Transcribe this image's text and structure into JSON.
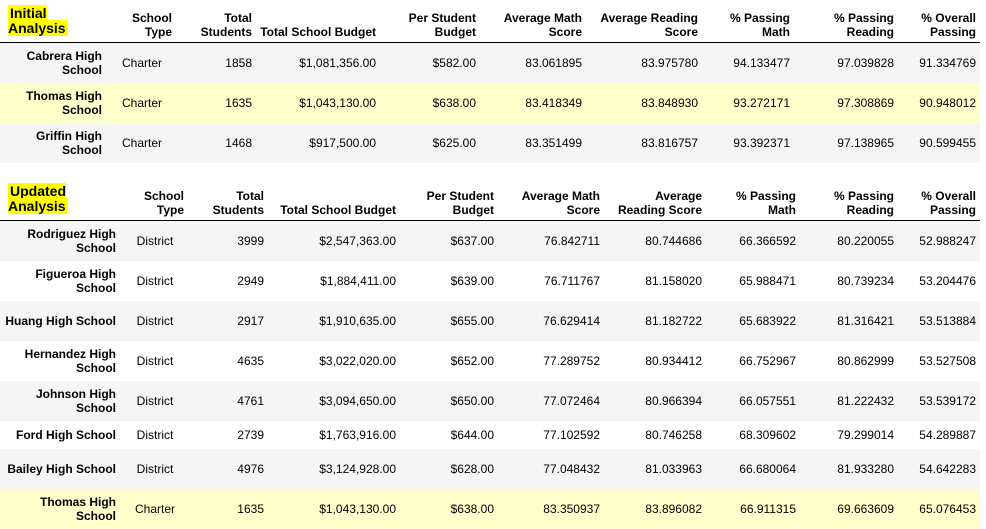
{
  "initial": {
    "title": "Initial Analysis",
    "headers": [
      "School Type",
      "Total Students",
      "Total School Budget",
      "Per Student Budget",
      "Average Math Score",
      "Average Reading Score",
      "% Passing Math",
      "% Passing Reading",
      "% Overall Passing"
    ],
    "rows": [
      {
        "name": "Cabrera High School",
        "type": "Charter",
        "students": "1858",
        "budget": "$1,081,356.00",
        "per_student": "$582.00",
        "math": "83.061895",
        "reading": "83.975780",
        "pass_math": "94.133477",
        "pass_reading": "97.039828",
        "overall": "91.334769"
      },
      {
        "name": "Thomas High School",
        "type": "Charter",
        "students": "1635",
        "budget": "$1,043,130.00",
        "per_student": "$638.00",
        "math": "83.418349",
        "reading": "83.848930",
        "pass_math": "93.272171",
        "pass_reading": "97.308869",
        "overall": "90.948012"
      },
      {
        "name": "Griffin High School",
        "type": "Charter",
        "students": "1468",
        "budget": "$917,500.00",
        "per_student": "$625.00",
        "math": "83.351499",
        "reading": "83.816757",
        "pass_math": "93.392371",
        "pass_reading": "97.138965",
        "overall": "90.599455"
      }
    ]
  },
  "updated": {
    "title": "Updated Analysis",
    "headers": [
      "School Type",
      "Total Students",
      "Total School Budget",
      "Per Student Budget",
      "Average Math Score",
      "Average Reading Score",
      "% Passing Math",
      "% Passing Reading",
      "% Overall Passing"
    ],
    "rows": [
      {
        "name": "Rodriguez High School",
        "type": "District",
        "students": "3999",
        "budget": "$2,547,363.00",
        "per_student": "$637.00",
        "math": "76.842711",
        "reading": "80.744686",
        "pass_math": "66.366592",
        "pass_reading": "80.220055",
        "overall": "52.988247"
      },
      {
        "name": "Figueroa High School",
        "type": "District",
        "students": "2949",
        "budget": "$1,884,411.00",
        "per_student": "$639.00",
        "math": "76.711767",
        "reading": "81.158020",
        "pass_math": "65.988471",
        "pass_reading": "80.739234",
        "overall": "53.204476"
      },
      {
        "name": "Huang High School",
        "type": "District",
        "students": "2917",
        "budget": "$1,910,635.00",
        "per_student": "$655.00",
        "math": "76.629414",
        "reading": "81.182722",
        "pass_math": "65.683922",
        "pass_reading": "81.316421",
        "overall": "53.513884"
      },
      {
        "name": "Hernandez High School",
        "type": "District",
        "students": "4635",
        "budget": "$3,022,020.00",
        "per_student": "$652.00",
        "math": "77.289752",
        "reading": "80.934412",
        "pass_math": "66.752967",
        "pass_reading": "80.862999",
        "overall": "53.527508"
      },
      {
        "name": "Johnson High School",
        "type": "District",
        "students": "4761",
        "budget": "$3,094,650.00",
        "per_student": "$650.00",
        "math": "77.072464",
        "reading": "80.966394",
        "pass_math": "66.057551",
        "pass_reading": "81.222432",
        "overall": "53.539172"
      },
      {
        "name": "Ford High School",
        "type": "District",
        "students": "2739",
        "budget": "$1,763,916.00",
        "per_student": "$644.00",
        "math": "77.102592",
        "reading": "80.746258",
        "pass_math": "68.309602",
        "pass_reading": "79.299014",
        "overall": "54.289887"
      },
      {
        "name": "Bailey High School",
        "type": "District",
        "students": "4976",
        "budget": "$3,124,928.00",
        "per_student": "$628.00",
        "math": "77.048432",
        "reading": "81.033963",
        "pass_math": "66.680064",
        "pass_reading": "81.933280",
        "overall": "54.642283"
      },
      {
        "name": "Thomas High School",
        "type": "Charter",
        "students": "1635",
        "budget": "$1,043,130.00",
        "per_student": "$638.00",
        "math": "83.350937",
        "reading": "83.896082",
        "pass_math": "66.911315",
        "pass_reading": "69.663609",
        "overall": "65.076453"
      }
    ]
  }
}
